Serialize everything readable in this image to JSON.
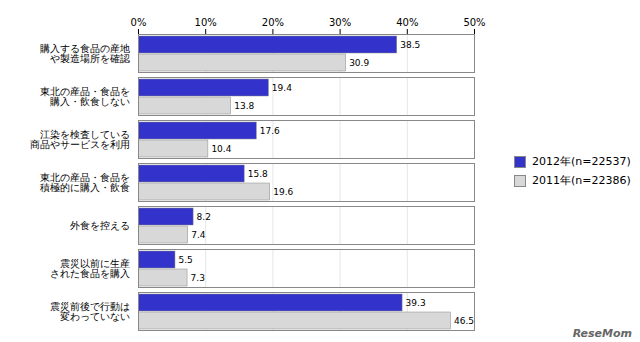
{
  "chart_data": {
    "type": "bar",
    "orientation": "horizontal",
    "categories": [
      "購入する食品の産地\nや製造場所を確認",
      "東北の産品・食品を\n購入・飲食しない",
      "江染を検査している\n商品やサービスを利用",
      "東北の産品・食品を\n積極的に購入・飲食",
      "外食を控える",
      "震災以前に生産\nされた食品を購入",
      "震災前後で行動は\n変わっていない"
    ],
    "series": [
      {
        "name": "2012年(n=22537)",
        "color": "#3333CC",
        "values": [
          38.5,
          19.4,
          17.6,
          15.8,
          8.2,
          5.5,
          39.3
        ]
      },
      {
        "name": "2011年(n=22386)",
        "color": "#D8D8D8",
        "values": [
          30.9,
          13.8,
          10.4,
          19.6,
          7.4,
          7.3,
          46.5
        ]
      }
    ],
    "xlim": [
      0,
      50
    ],
    "xticks": [
      {
        "value": 0,
        "label": "0%"
      },
      {
        "value": 10,
        "label": "10%"
      },
      {
        "value": 20,
        "label": "20%"
      },
      {
        "value": 30,
        "label": "30%"
      },
      {
        "value": 40,
        "label": "40%"
      },
      {
        "value": 50,
        "label": "50%"
      }
    ],
    "grid": true,
    "legend": "right",
    "data_labels": true,
    "annotations": [
      "ReseMom"
    ]
  }
}
